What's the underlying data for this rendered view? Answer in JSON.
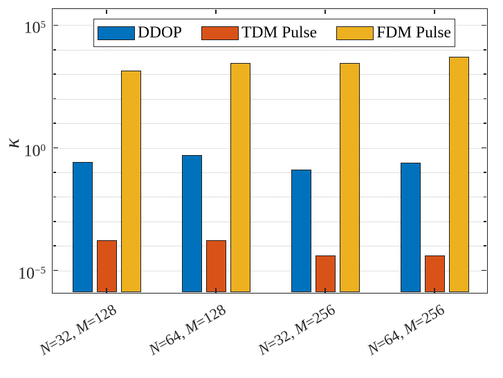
{
  "figure_title": "",
  "chart_data": {
    "type": "bar",
    "yscale": "log",
    "title": "",
    "xlabel": "",
    "ylabel": "κ",
    "categories": [
      "N=32, M=128",
      "N=64, M=128",
      "N=32, M=256",
      "N=64, M=256"
    ],
    "series": [
      {
        "name": "DDOP",
        "color": "#0072BD",
        "values": [
          0.26,
          0.49,
          0.13,
          0.25
        ]
      },
      {
        "name": "TDM Pulse",
        "color": "#D95319",
        "values": [
          0.00017,
          0.00017,
          4.2e-05,
          4.2e-05
        ]
      },
      {
        "name": "FDM Pulse",
        "color": "#EDB120",
        "values": [
          1400,
          2900,
          2900,
          5300
        ]
      }
    ],
    "ylim": [
      1.2e-06,
      460000
    ],
    "grid": true,
    "legend_position": "top-center",
    "y_ticks": [
      {
        "base": "10",
        "sup": "5",
        "exp": 5
      },
      {
        "base": "10",
        "sup": "0",
        "exp": 0
      },
      {
        "base": "10",
        "sup": "−5",
        "exp": -5
      }
    ],
    "y_minor_exponents": [
      4,
      3,
      2,
      1,
      -1,
      -2,
      -3,
      -4
    ],
    "axis_color": "#262626",
    "grid_major_color": "#e2e2e2",
    "grid_minor_color": "#bfbfbf"
  }
}
